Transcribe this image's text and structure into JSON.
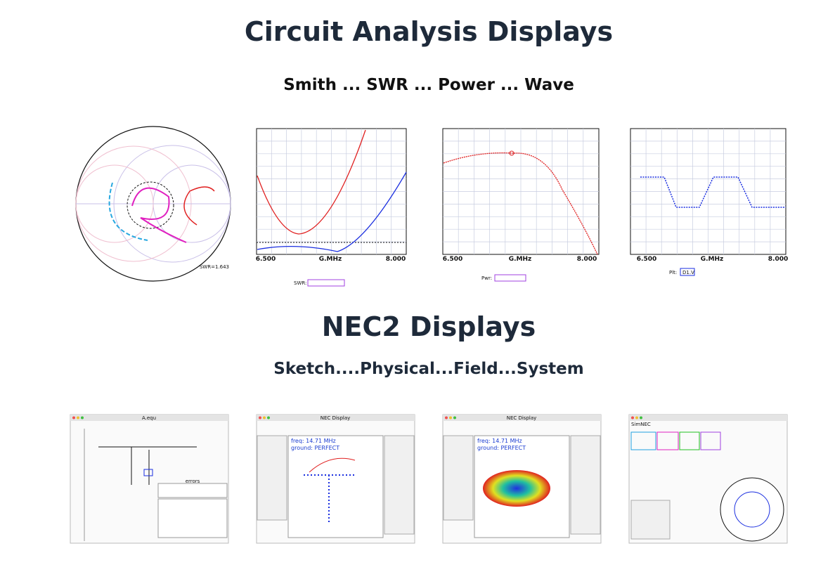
{
  "sections": [
    {
      "title": "Circuit Analysis Displays",
      "subtitle": "Smith ... SWR ... Power ... Wave",
      "images": [
        {
          "caption": "SWR=1.643"
        },
        {
          "axis_labels": [
            "6.500",
            "G.MHz",
            "8.000"
          ],
          "legend": "SWR:"
        },
        {
          "axis_labels": [
            "6.500",
            "G.MHz",
            "8.000"
          ],
          "legend": "Pwr:"
        },
        {
          "axis_labels": [
            "6.500",
            "G.MHz",
            "8.000"
          ],
          "legend": "Plt:",
          "trace": "D1.V"
        }
      ]
    },
    {
      "title": "NEC2 Displays",
      "subtitle": "Sketch....Physical...Field...System",
      "images": [
        {
          "window_title": "A.equ",
          "panel": "errors"
        },
        {
          "window_title": "NEC Display",
          "freq": "freq: 14.71 MHz",
          "ground": "ground: PERFECT"
        },
        {
          "window_title": "NEC Display",
          "freq": "freq: 14.71 MHz",
          "ground": "ground: PERFECT"
        },
        {
          "window_title": "SimNEC"
        }
      ]
    }
  ]
}
